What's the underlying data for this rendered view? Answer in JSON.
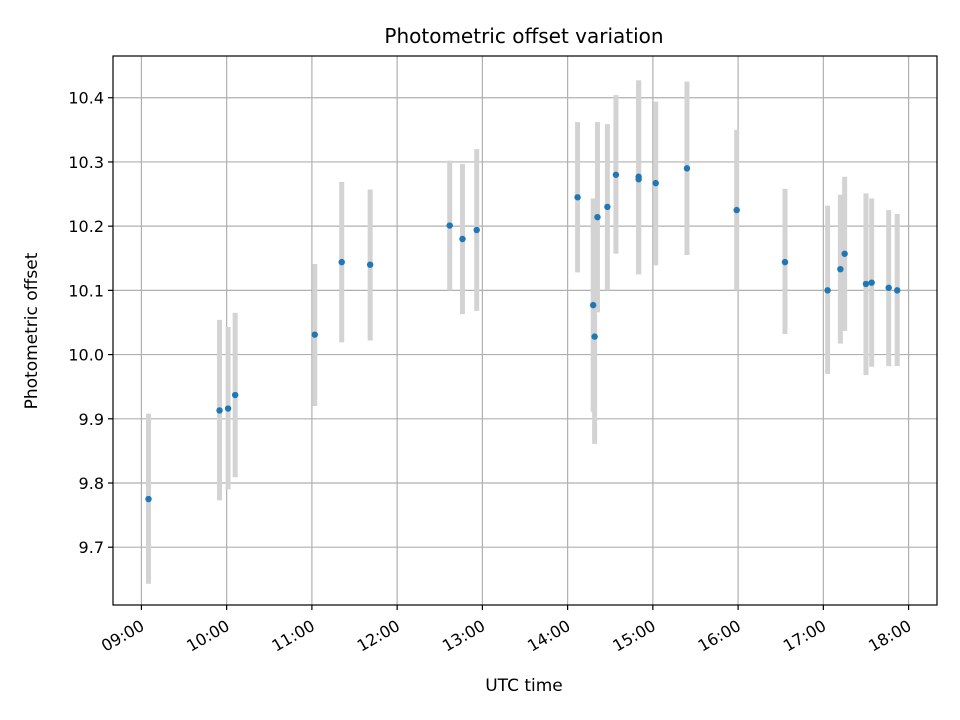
{
  "chart_data": {
    "type": "scatter",
    "title": "Photometric offset variation",
    "xlabel": "UTC time",
    "ylabel": "Photometric offset",
    "x_ticks": [
      "09:00",
      "10:00",
      "11:00",
      "12:00",
      "13:00",
      "14:00",
      "15:00",
      "16:00",
      "17:00",
      "18:00"
    ],
    "y_ticks": [
      "9.7",
      "9.8",
      "9.9",
      "10.0",
      "10.1",
      "10.2",
      "10.3",
      "10.4"
    ],
    "xlim": [
      "08:40",
      "18:20"
    ],
    "ylim": [
      9.61,
      10.465
    ],
    "grid": true,
    "colors": {
      "point": "#1f77b4",
      "errorbar": "#d3d3d3",
      "grid": "#b0b0b0"
    },
    "points": [
      {
        "time": "09:05",
        "offset": 9.775,
        "err_low": 9.643,
        "err_high": 9.908
      },
      {
        "time": "09:55",
        "offset": 9.913,
        "err_low": 9.773,
        "err_high": 10.054
      },
      {
        "time": "10:01",
        "offset": 9.916,
        "err_low": 9.79,
        "err_high": 10.043
      },
      {
        "time": "10:06",
        "offset": 9.937,
        "err_low": 9.809,
        "err_high": 10.065
      },
      {
        "time": "11:02",
        "offset": 10.031,
        "err_low": 9.92,
        "err_high": 10.141
      },
      {
        "time": "11:21",
        "offset": 10.144,
        "err_low": 10.019,
        "err_high": 10.269
      },
      {
        "time": "11:41",
        "offset": 10.14,
        "err_low": 10.022,
        "err_high": 10.257
      },
      {
        "time": "12:37",
        "offset": 10.201,
        "err_low": 10.1,
        "err_high": 10.302
      },
      {
        "time": "12:46",
        "offset": 10.18,
        "err_low": 10.063,
        "err_high": 10.297
      },
      {
        "time": "12:56",
        "offset": 10.194,
        "err_low": 10.068,
        "err_high": 10.32
      },
      {
        "time": "14:07",
        "offset": 10.245,
        "err_low": 10.128,
        "err_high": 10.362
      },
      {
        "time": "14:18",
        "offset": 10.077,
        "err_low": 9.911,
        "err_high": 10.243
      },
      {
        "time": "14:19",
        "offset": 10.028,
        "err_low": 9.861,
        "err_high": 10.196
      },
      {
        "time": "14:21",
        "offset": 10.214,
        "err_low": 10.066,
        "err_high": 10.362
      },
      {
        "time": "14:28",
        "offset": 10.23,
        "err_low": 10.1,
        "err_high": 10.359
      },
      {
        "time": "14:34",
        "offset": 10.28,
        "err_low": 10.157,
        "err_high": 10.404
      },
      {
        "time": "14:50",
        "offset": 10.277,
        "err_low": 10.125,
        "err_high": 10.427
      },
      {
        "time": "14:50",
        "offset": 10.273,
        "err_low": 10.125,
        "err_high": 10.427
      },
      {
        "time": "15:02",
        "offset": 10.267,
        "err_low": 10.139,
        "err_high": 10.394
      },
      {
        "time": "15:24",
        "offset": 10.29,
        "err_low": 10.155,
        "err_high": 10.425
      },
      {
        "time": "15:59",
        "offset": 10.225,
        "err_low": 10.1,
        "err_high": 10.35
      },
      {
        "time": "16:33",
        "offset": 10.144,
        "err_low": 10.032,
        "err_high": 10.258
      },
      {
        "time": "17:03",
        "offset": 10.1,
        "err_low": 9.97,
        "err_high": 10.232
      },
      {
        "time": "17:12",
        "offset": 10.133,
        "err_low": 10.017,
        "err_high": 10.249
      },
      {
        "time": "17:15",
        "offset": 10.157,
        "err_low": 10.037,
        "err_high": 10.277
      },
      {
        "time": "17:30",
        "offset": 10.11,
        "err_low": 9.968,
        "err_high": 10.251
      },
      {
        "time": "17:34",
        "offset": 10.112,
        "err_low": 9.981,
        "err_high": 10.243
      },
      {
        "time": "17:46",
        "offset": 10.104,
        "err_low": 9.982,
        "err_high": 10.225
      },
      {
        "time": "17:52",
        "offset": 10.1,
        "err_low": 9.982,
        "err_high": 10.219
      }
    ]
  }
}
